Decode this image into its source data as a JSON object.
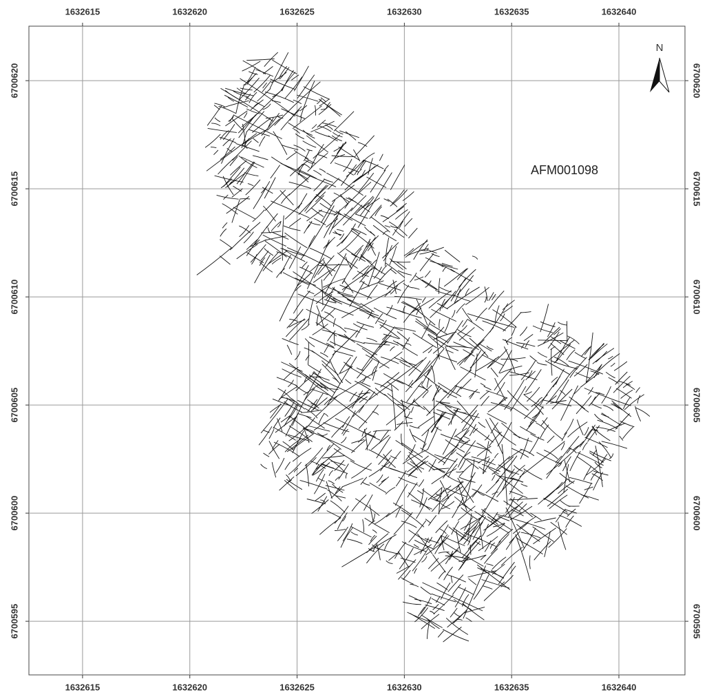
{
  "map": {
    "label": "AFM001098",
    "north": "N",
    "xlim": [
      1632612.5,
      1632643.08
    ],
    "ylim": [
      6700592.52,
      6700622.52
    ],
    "xticks": [
      1632615,
      1632620,
      1632625,
      1632630,
      1632635,
      1632640
    ],
    "yticks": [
      6700595,
      6700600,
      6700605,
      6700610,
      6700615,
      6700620
    ],
    "grid": true
  }
}
